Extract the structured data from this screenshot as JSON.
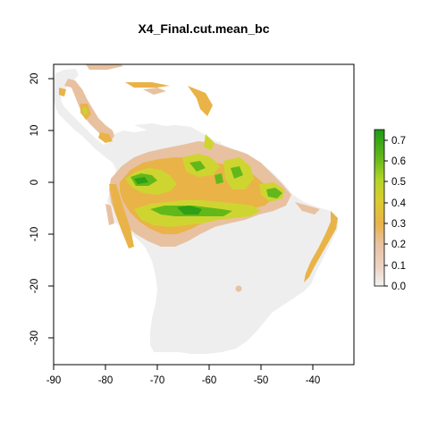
{
  "map": {
    "title": "X4_Final.cut.mean_bc",
    "x_ticks": [
      "-90",
      "-80",
      "-70",
      "-60",
      "-50",
      "-40"
    ],
    "y_ticks": [
      "20",
      "10",
      "0",
      "-10",
      "-20",
      "-30"
    ],
    "extent": {
      "xmin": -90,
      "xmax": -32,
      "ymin": -35,
      "ymax": 24
    },
    "no_data_color": "#eeeeee",
    "background_color": "#ffffff"
  },
  "legend": {
    "ticks": [
      "0.0",
      "0.1",
      "0.2",
      "0.3",
      "0.4",
      "0.5",
      "0.6",
      "0.7"
    ],
    "range": [
      0.0,
      0.75
    ],
    "color_stops": [
      "#f2f2f2",
      "#e8c1a0",
      "#e9b347",
      "#cfd530",
      "#7fc61f",
      "#1e9b14"
    ]
  }
}
